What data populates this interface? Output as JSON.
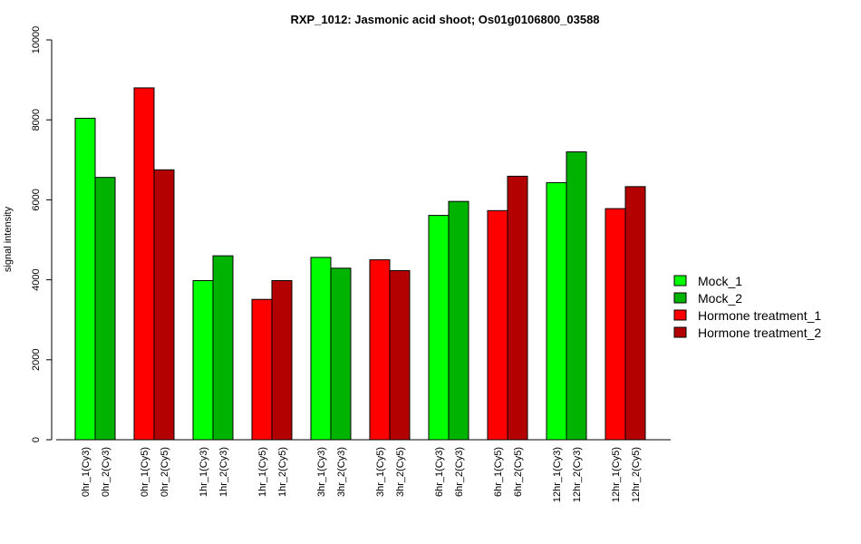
{
  "chart_data": {
    "type": "bar",
    "title": "RXP_1012: Jasmonic acid shoot; Os01g0106800_03588",
    "xlabel": "",
    "ylabel": "signal intensity",
    "ylim": [
      0,
      10000
    ],
    "yticks": [
      0,
      2000,
      4000,
      6000,
      8000,
      10000
    ],
    "grid": false,
    "legend_position": "right",
    "bars": [
      {
        "label": "0hr_1(Cy3)",
        "value": 8040,
        "series": "Mock_1"
      },
      {
        "label": "0hr_2(Cy3)",
        "value": 6560,
        "series": "Mock_2"
      },
      {
        "label": "0hr_1(Cy5)",
        "value": 8800,
        "series": "Hormone treatment_1"
      },
      {
        "label": "0hr_2(Cy5)",
        "value": 6750,
        "series": "Hormone treatment_2"
      },
      {
        "label": "1hr_1(Cy3)",
        "value": 3980,
        "series": "Mock_1"
      },
      {
        "label": "1hr_2(Cy3)",
        "value": 4600,
        "series": "Mock_2"
      },
      {
        "label": "1hr_1(Cy5)",
        "value": 3510,
        "series": "Hormone treatment_1"
      },
      {
        "label": "1hr_2(Cy5)",
        "value": 3980,
        "series": "Hormone treatment_2"
      },
      {
        "label": "3hr_1(Cy3)",
        "value": 4560,
        "series": "Mock_1"
      },
      {
        "label": "3hr_2(Cy3)",
        "value": 4290,
        "series": "Mock_2"
      },
      {
        "label": "3hr_1(Cy5)",
        "value": 4500,
        "series": "Hormone treatment_1"
      },
      {
        "label": "3hr_2(Cy5)",
        "value": 4230,
        "series": "Hormone treatment_2"
      },
      {
        "label": "6hr_1(Cy3)",
        "value": 5610,
        "series": "Mock_1"
      },
      {
        "label": "6hr_2(Cy3)",
        "value": 5960,
        "series": "Mock_2"
      },
      {
        "label": "6hr_1(Cy5)",
        "value": 5730,
        "series": "Hormone treatment_1"
      },
      {
        "label": "6hr_2(Cy5)",
        "value": 6590,
        "series": "Hormone treatment_2"
      },
      {
        "label": "12hr_1(Cy3)",
        "value": 6430,
        "series": "Mock_1"
      },
      {
        "label": "12hr_2(Cy3)",
        "value": 7200,
        "series": "Mock_2"
      },
      {
        "label": "12hr_1(Cy5)",
        "value": 5780,
        "series": "Hormone treatment_1"
      },
      {
        "label": "12hr_2(Cy5)",
        "value": 6330,
        "series": "Hormone treatment_2"
      }
    ],
    "legend": [
      {
        "name": "Mock_1",
        "color": "#00ff00"
      },
      {
        "name": "Mock_2",
        "color": "#00b300"
      },
      {
        "name": "Hormone treatment_1",
        "color": "#ff0000"
      },
      {
        "name": "Hormone treatment_2",
        "color": "#b30000"
      }
    ]
  }
}
